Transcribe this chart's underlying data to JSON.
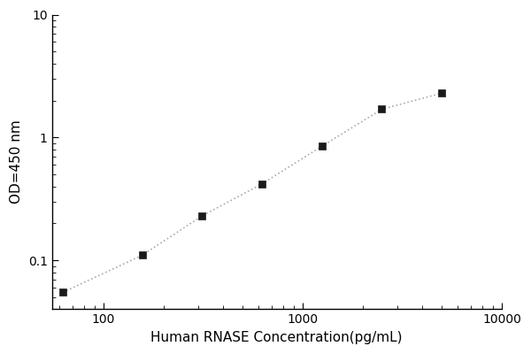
{
  "x": [
    62.5,
    156.25,
    312.5,
    625,
    1250,
    2500,
    5000
  ],
  "y": [
    0.055,
    0.11,
    0.23,
    0.42,
    0.85,
    1.7,
    2.3
  ],
  "xlabel": "Human RNASE Concentration(pg/mL)",
  "ylabel": "OD=450 nm",
  "xlim": [
    55,
    10000
  ],
  "ylim": [
    0.04,
    10
  ],
  "marker": "s",
  "marker_color": "#1a1a1a",
  "marker_size": 6,
  "line_style": "dotted",
  "line_color": "#aaaaaa",
  "background_color": "#ffffff",
  "xlabel_fontsize": 11,
  "ylabel_fontsize": 11,
  "tick_fontsize": 10,
  "xticks": [
    100,
    1000,
    10000
  ],
  "yticks": [
    0.1,
    1,
    10
  ]
}
